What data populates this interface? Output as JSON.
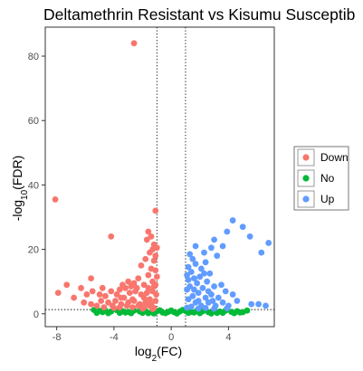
{
  "chart_data": {
    "type": "scatter",
    "title": "Deltamethrin Resistant vs Kisumu Susceptib",
    "xlabel": "log2(FC)",
    "ylabel": "-log10(FDR)",
    "xlim": [
      -8.8,
      7.2
    ],
    "ylim": [
      -4,
      89
    ],
    "x_ticks": [
      -8,
      -4,
      0,
      4
    ],
    "y_ticks": [
      0,
      20,
      40,
      60,
      80
    ],
    "grid": false,
    "reference_lines": {
      "vertical": [
        -1,
        1
      ],
      "horizontal": [
        1.3
      ]
    },
    "legend": {
      "position": "right",
      "entries": [
        "Down",
        "No",
        "Up"
      ]
    },
    "colors": {
      "Down": "#F8766D",
      "No": "#00BA38",
      "Up": "#619CFF"
    },
    "series": [
      {
        "name": "Down",
        "points": [
          [
            -2.6,
            84
          ],
          [
            -8.1,
            35.5
          ],
          [
            -1.1,
            32
          ],
          [
            -4.2,
            24
          ],
          [
            -1.6,
            25.5
          ],
          [
            -1.4,
            24
          ],
          [
            -1.7,
            23
          ],
          [
            -1.2,
            21.5
          ],
          [
            -1.3,
            20
          ],
          [
            -1.0,
            20.5
          ],
          [
            -1.5,
            19
          ],
          [
            -1.1,
            18
          ],
          [
            -1.8,
            17
          ],
          [
            -1.2,
            16.5
          ],
          [
            -2.1,
            15
          ],
          [
            -1.4,
            14
          ],
          [
            -1.1,
            13.5
          ],
          [
            -1.6,
            12
          ],
          [
            -2.3,
            11
          ],
          [
            -1.0,
            11.5
          ],
          [
            -1.3,
            10
          ],
          [
            -3.0,
            10
          ],
          [
            -3.4,
            9
          ],
          [
            -2.6,
            9.5
          ],
          [
            -1.9,
            9
          ],
          [
            -1.1,
            9
          ],
          [
            -5.6,
            11
          ],
          [
            -7.3,
            9
          ],
          [
            -6.3,
            8
          ],
          [
            -7.9,
            6.5
          ],
          [
            -6.8,
            5
          ],
          [
            -5.5,
            7
          ],
          [
            -5.0,
            6
          ],
          [
            -4.6,
            5.5
          ],
          [
            -4.2,
            7
          ],
          [
            -3.8,
            6
          ],
          [
            -3.3,
            5
          ],
          [
            -2.9,
            6.5
          ],
          [
            -2.5,
            7
          ],
          [
            -2.1,
            6
          ],
          [
            -1.7,
            6.5
          ],
          [
            -1.3,
            7
          ],
          [
            -1.05,
            6
          ],
          [
            -4.9,
            4
          ],
          [
            -4.4,
            3.5
          ],
          [
            -3.9,
            4
          ],
          [
            -3.5,
            3
          ],
          [
            -3.0,
            3.5
          ],
          [
            -2.6,
            4
          ],
          [
            -2.2,
            3
          ],
          [
            -1.8,
            3.5
          ],
          [
            -1.4,
            3
          ],
          [
            -1.1,
            4
          ],
          [
            -5.6,
            3
          ],
          [
            -5.2,
            2.5
          ],
          [
            -4.7,
            2
          ],
          [
            -4.1,
            2.5
          ],
          [
            -3.6,
            2
          ],
          [
            -3.1,
            2.5
          ],
          [
            -2.7,
            2
          ],
          [
            -2.3,
            2.5
          ],
          [
            -1.9,
            2
          ],
          [
            -1.5,
            2.5
          ],
          [
            -1.2,
            1.8
          ],
          [
            -6.1,
            3.5
          ],
          [
            -4.0,
            1.8
          ],
          [
            -2.0,
            1.6
          ],
          [
            -1.3,
            1.5
          ],
          [
            -3.2,
            8
          ],
          [
            -2.8,
            8.5
          ],
          [
            -2.4,
            8
          ],
          [
            -1.6,
            8
          ],
          [
            -1.2,
            8.5
          ],
          [
            -3.6,
            7.5
          ],
          [
            -4.8,
            8
          ],
          [
            -5.9,
            6
          ],
          [
            -1.9,
            5
          ],
          [
            -2.7,
            4.5
          ],
          [
            -3.5,
            5
          ],
          [
            -1.5,
            4.5
          ]
        ]
      },
      {
        "name": "No",
        "points": [
          [
            -5.4,
            1.2
          ],
          [
            -5.0,
            0.9
          ],
          [
            -4.6,
            1.0
          ],
          [
            -4.2,
            0.7
          ],
          [
            -3.8,
            1.1
          ],
          [
            -3.4,
            0.8
          ],
          [
            -3.0,
            0.6
          ],
          [
            -2.6,
            1.0
          ],
          [
            -2.2,
            0.7
          ],
          [
            -1.8,
            0.9
          ],
          [
            -1.4,
            0.5
          ],
          [
            -1.0,
            0.8
          ],
          [
            -0.6,
            0.4
          ],
          [
            -0.2,
            0.6
          ],
          [
            0.2,
            0.5
          ],
          [
            0.6,
            0.7
          ],
          [
            1.0,
            0.9
          ],
          [
            1.4,
            0.6
          ],
          [
            1.8,
            1.0
          ],
          [
            2.2,
            0.8
          ],
          [
            2.6,
            0.5
          ],
          [
            3.0,
            0.9
          ],
          [
            3.4,
            0.7
          ],
          [
            3.8,
            1.0
          ],
          [
            4.2,
            0.6
          ],
          [
            4.6,
            0.8
          ],
          [
            5.0,
            0.5
          ],
          [
            -5.2,
            0.3
          ],
          [
            -4.4,
            0.2
          ],
          [
            -3.6,
            0.3
          ],
          [
            -2.8,
            0.2
          ],
          [
            -2.0,
            0.3
          ],
          [
            -1.2,
            0.1
          ],
          [
            -0.4,
            0.2
          ],
          [
            0.4,
            0.1
          ],
          [
            1.2,
            0.3
          ],
          [
            2.0,
            0.2
          ],
          [
            2.8,
            0.1
          ],
          [
            3.6,
            0.3
          ],
          [
            4.4,
            0.2
          ],
          [
            -0.8,
            1.1
          ],
          [
            0.0,
            1.0
          ],
          [
            0.8,
            1.2
          ],
          [
            -4.8,
            0.5
          ],
          [
            -3.2,
            0.4
          ],
          [
            -1.6,
            0.2
          ],
          [
            1.6,
            0.4
          ],
          [
            3.2,
            0.3
          ],
          [
            4.8,
            0.4
          ],
          [
            5.3,
            1.0
          ]
        ]
      },
      {
        "name": "Up",
        "points": [
          [
            4.3,
            29
          ],
          [
            5.0,
            27
          ],
          [
            3.9,
            25.5
          ],
          [
            5.5,
            24
          ],
          [
            6.8,
            22
          ],
          [
            3.0,
            23
          ],
          [
            3.6,
            21
          ],
          [
            2.8,
            20.5
          ],
          [
            1.7,
            21
          ],
          [
            1.3,
            18.5
          ],
          [
            6.3,
            19
          ],
          [
            2.3,
            19
          ],
          [
            3.2,
            18
          ],
          [
            1.5,
            17
          ],
          [
            2.4,
            16
          ],
          [
            1.7,
            15.5
          ],
          [
            1.2,
            14.5
          ],
          [
            2.1,
            14
          ],
          [
            1.4,
            13
          ],
          [
            2.7,
            12.5
          ],
          [
            1.1,
            12
          ],
          [
            1.6,
            11
          ],
          [
            2.0,
            11.5
          ],
          [
            2.5,
            10
          ],
          [
            1.2,
            10.5
          ],
          [
            1.8,
            9.5
          ],
          [
            3.5,
            9
          ],
          [
            3.0,
            8.5
          ],
          [
            1.3,
            8.5
          ],
          [
            2.2,
            8
          ],
          [
            1.1,
            7.5
          ],
          [
            3.8,
            7
          ],
          [
            4.3,
            6
          ],
          [
            4.6,
            4
          ],
          [
            5.6,
            3
          ],
          [
            6.1,
            3
          ],
          [
            6.6,
            2.5
          ],
          [
            3.3,
            5
          ],
          [
            2.8,
            6
          ],
          [
            2.4,
            5
          ],
          [
            1.9,
            6.5
          ],
          [
            1.5,
            5.5
          ],
          [
            1.2,
            4.5
          ],
          [
            1.7,
            3.5
          ],
          [
            2.1,
            2.5
          ],
          [
            2.6,
            3.5
          ],
          [
            3.1,
            2.5
          ],
          [
            3.6,
            3.5
          ],
          [
            4.0,
            2.5
          ],
          [
            1.4,
            2.2
          ],
          [
            1.9,
            1.6
          ],
          [
            2.4,
            1.8
          ],
          [
            3.0,
            1.6
          ],
          [
            3.9,
            1.7
          ],
          [
            1.1,
            1.9
          ],
          [
            2.9,
            4
          ],
          [
            1.6,
            7.5
          ],
          [
            2.6,
            7
          ],
          [
            1.9,
            4
          ],
          [
            2.3,
            12.5
          ]
        ]
      }
    ]
  }
}
